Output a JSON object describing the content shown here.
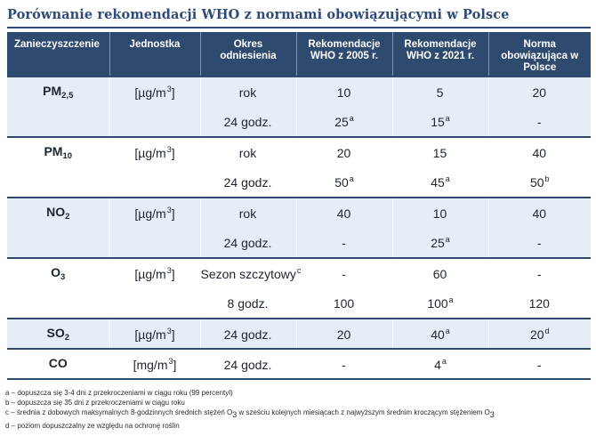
{
  "title": "Porównanie rekomendacji WHO z normami obowiązującymi w Polsce",
  "headers": [
    "Zanieczyszczenie",
    "Jednostka",
    "Okres odniesienia",
    "Rekomendacje WHO z 2005 r.",
    "Rekomendacje WHO z 2021 r.",
    "Norma obowiązująca w Polsce"
  ],
  "colors": {
    "header_bg": "#2f4a6f",
    "title": "#2f4a79",
    "row_shade": "#e5eef7"
  },
  "rows": [
    {
      "pollutant": "PM",
      "pollutant_sub": "2,5",
      "unit": "[µg/m",
      "unit_sup": "3",
      "period": "rok",
      "period_sup": "",
      "who2005": "10",
      "who2005_sup": "",
      "who2021": "5",
      "who2021_sup": "",
      "pl": "20",
      "pl_sup": ""
    },
    {
      "pollutant": "",
      "pollutant_sub": "",
      "unit": "",
      "unit_sup": "",
      "period": "24 godz.",
      "period_sup": "",
      "who2005": "25",
      "who2005_sup": "a",
      "who2021": "15",
      "who2021_sup": "a",
      "pl": "-",
      "pl_sup": ""
    },
    {
      "pollutant": "PM",
      "pollutant_sub": "10",
      "unit": "[µg/m",
      "unit_sup": "3",
      "period": "rok",
      "period_sup": "",
      "who2005": "20",
      "who2005_sup": "",
      "who2021": "15",
      "who2021_sup": "",
      "pl": "40",
      "pl_sup": ""
    },
    {
      "pollutant": "",
      "pollutant_sub": "",
      "unit": "",
      "unit_sup": "",
      "period": "24 godz.",
      "period_sup": "",
      "who2005": "50",
      "who2005_sup": "a",
      "who2021": "45",
      "who2021_sup": "a",
      "pl": "50",
      "pl_sup": "b"
    },
    {
      "pollutant": "NO",
      "pollutant_sub": "2",
      "unit": "[µg/m",
      "unit_sup": "3",
      "period": "rok",
      "period_sup": "",
      "who2005": "40",
      "who2005_sup": "",
      "who2021": "10",
      "who2021_sup": "",
      "pl": "40",
      "pl_sup": ""
    },
    {
      "pollutant": "",
      "pollutant_sub": "",
      "unit": "",
      "unit_sup": "",
      "period": "24 godz.",
      "period_sup": "",
      "who2005": "-",
      "who2005_sup": "",
      "who2021": "25",
      "who2021_sup": "a",
      "pl": "-",
      "pl_sup": ""
    },
    {
      "pollutant": "O",
      "pollutant_sub": "3",
      "unit": "[µg/m",
      "unit_sup": "3",
      "period": "Sezon szczytowy",
      "period_sup": "c",
      "who2005": "-",
      "who2005_sup": "",
      "who2021": "60",
      "who2021_sup": "",
      "pl": "-",
      "pl_sup": ""
    },
    {
      "pollutant": "",
      "pollutant_sub": "",
      "unit": "",
      "unit_sup": "",
      "period": "8 godz.",
      "period_sup": "",
      "who2005": "100",
      "who2005_sup": "",
      "who2021": "100",
      "who2021_sup": "a",
      "pl": "120",
      "pl_sup": ""
    },
    {
      "pollutant": "SO",
      "pollutant_sub": "2",
      "unit": "[µg/m",
      "unit_sup": "3",
      "period": "24 godz.",
      "period_sup": "",
      "who2005": "20",
      "who2005_sup": "",
      "who2021": "40",
      "who2021_sup": "a",
      "pl": "20",
      "pl_sup": "d"
    },
    {
      "pollutant": "CO",
      "pollutant_sub": "",
      "unit": "[mg/m",
      "unit_sup": "3",
      "period": "24 godz.",
      "period_sup": "",
      "who2005": "-",
      "who2005_sup": "",
      "who2021": "4",
      "who2021_sup": "a",
      "pl": "-",
      "pl_sup": ""
    }
  ],
  "unit_close": "]",
  "notes": [
    {
      "pre": "a – dopuszcza się 3-4 dni z przekroczeniami w ciągu roku (99 percentyl)",
      "sub": "",
      "post": ""
    },
    {
      "pre": "b – dopuszcza się 35 dni z przekroczeniami w ciągu roku",
      "sub": "",
      "post": ""
    },
    {
      "pre": "c – średnia z dobowych maksymalnych 8-godzinnych średnich stężeń O",
      "sub": "3",
      "post": " w sześciu kolejnych miesiącach z najwyższym średnim kroczącym stężeniem O"
    },
    {
      "pre": "d – poziom dopuszczalny ze względu na ochronę roślin",
      "sub": "",
      "post": ""
    }
  ],
  "note_c_tail_sub": "3"
}
